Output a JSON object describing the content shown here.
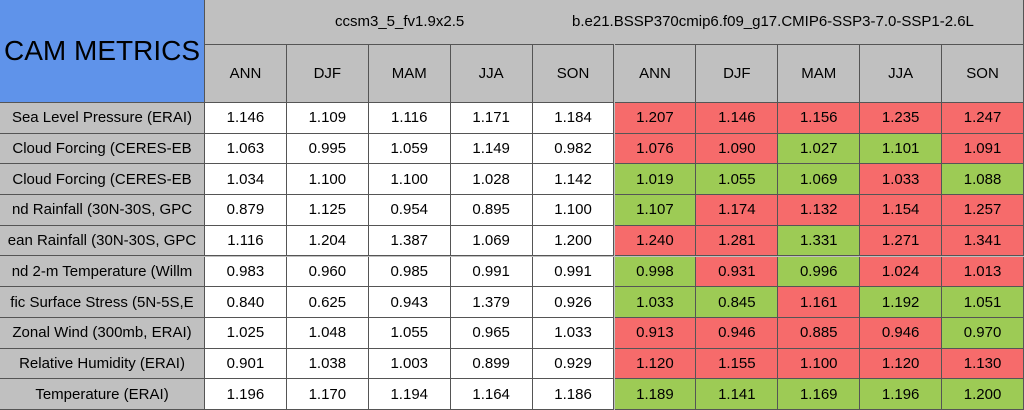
{
  "header": {
    "title": "CAM METRICS",
    "groups": [
      "ccsm3_5_fv1.9x2.5",
      "b.e21.BSSP370cmip6.f09_g17.CMIP6-SSP3-7.0-SSP1-2.6L"
    ],
    "seasons": [
      "ANN",
      "DJF",
      "MAM",
      "JJA",
      "SON",
      "ANN",
      "DJF",
      "MAM",
      "JJA",
      "SON"
    ]
  },
  "rows": [
    {
      "label": "Sea Level Pressure (ERAI)",
      "values": [
        "1.146",
        "1.109",
        "1.116",
        "1.171",
        "1.184",
        "1.207",
        "1.146",
        "1.156",
        "1.235",
        "1.247"
      ],
      "colors": [
        "#ffffff",
        "#ffffff",
        "#ffffff",
        "#ffffff",
        "#ffffff",
        "#f66b6b",
        "#f66b6b",
        "#f66b6b",
        "#f66b6b",
        "#f66b6b"
      ]
    },
    {
      "label": "Cloud Forcing (CERES-EB",
      "values": [
        "1.063",
        "0.995",
        "1.059",
        "1.149",
        "0.982",
        "1.076",
        "1.090",
        "1.027",
        "1.101",
        "1.091"
      ],
      "colors": [
        "#ffffff",
        "#ffffff",
        "#ffffff",
        "#ffffff",
        "#ffffff",
        "#f66b6b",
        "#f66b6b",
        "#9dcb55",
        "#9dcb55",
        "#f66b6b"
      ]
    },
    {
      "label": "Cloud Forcing (CERES-EB",
      "values": [
        "1.034",
        "1.100",
        "1.100",
        "1.028",
        "1.142",
        "1.019",
        "1.055",
        "1.069",
        "1.033",
        "1.088"
      ],
      "colors": [
        "#ffffff",
        "#ffffff",
        "#ffffff",
        "#ffffff",
        "#ffffff",
        "#9dcb55",
        "#9dcb55",
        "#9dcb55",
        "#f66b6b",
        "#9dcb55"
      ]
    },
    {
      "label": "nd Rainfall (30N-30S, GPC",
      "values": [
        "0.879",
        "1.125",
        "0.954",
        "0.895",
        "1.100",
        "1.107",
        "1.174",
        "1.132",
        "1.154",
        "1.257"
      ],
      "colors": [
        "#ffffff",
        "#ffffff",
        "#ffffff",
        "#ffffff",
        "#ffffff",
        "#9dcb55",
        "#f66b6b",
        "#f66b6b",
        "#f66b6b",
        "#f66b6b"
      ]
    },
    {
      "label": "ean Rainfall (30N-30S, GPC",
      "values": [
        "1.116",
        "1.204",
        "1.387",
        "1.069",
        "1.200",
        "1.240",
        "1.281",
        "1.331",
        "1.271",
        "1.341"
      ],
      "colors": [
        "#ffffff",
        "#ffffff",
        "#ffffff",
        "#ffffff",
        "#ffffff",
        "#f66b6b",
        "#f66b6b",
        "#9dcb55",
        "#f66b6b",
        "#f66b6b"
      ]
    },
    {
      "label": "nd 2-m Temperature (Willm",
      "values": [
        "0.983",
        "0.960",
        "0.985",
        "0.991",
        "0.991",
        "0.998",
        "0.931",
        "0.996",
        "1.024",
        "1.013"
      ],
      "colors": [
        "#ffffff",
        "#ffffff",
        "#ffffff",
        "#ffffff",
        "#ffffff",
        "#9dcb55",
        "#f66b6b",
        "#9dcb55",
        "#f66b6b",
        "#f66b6b"
      ]
    },
    {
      "label": "fic Surface Stress (5N-5S,E",
      "values": [
        "0.840",
        "0.625",
        "0.943",
        "1.379",
        "0.926",
        "1.033",
        "0.845",
        "1.161",
        "1.192",
        "1.051"
      ],
      "colors": [
        "#ffffff",
        "#ffffff",
        "#ffffff",
        "#ffffff",
        "#ffffff",
        "#9dcb55",
        "#9dcb55",
        "#f66b6b",
        "#9dcb55",
        "#9dcb55"
      ]
    },
    {
      "label": "Zonal Wind (300mb, ERAI)",
      "values": [
        "1.025",
        "1.048",
        "1.055",
        "0.965",
        "1.033",
        "0.913",
        "0.946",
        "0.885",
        "0.946",
        "0.970"
      ],
      "colors": [
        "#ffffff",
        "#ffffff",
        "#ffffff",
        "#ffffff",
        "#ffffff",
        "#f66b6b",
        "#f66b6b",
        "#f66b6b",
        "#f66b6b",
        "#9dcb55"
      ]
    },
    {
      "label": "Relative Humidity (ERAI)",
      "values": [
        "0.901",
        "1.038",
        "1.003",
        "0.899",
        "0.929",
        "1.120",
        "1.155",
        "1.100",
        "1.120",
        "1.130"
      ],
      "colors": [
        "#ffffff",
        "#ffffff",
        "#ffffff",
        "#ffffff",
        "#ffffff",
        "#f66b6b",
        "#f66b6b",
        "#f66b6b",
        "#f66b6b",
        "#f66b6b"
      ]
    },
    {
      "label": "Temperature (ERAI)",
      "values": [
        "1.196",
        "1.170",
        "1.194",
        "1.164",
        "1.186",
        "1.189",
        "1.141",
        "1.169",
        "1.196",
        "1.200"
      ],
      "colors": [
        "#ffffff",
        "#ffffff",
        "#ffffff",
        "#ffffff",
        "#ffffff",
        "#9dcb55",
        "#9dcb55",
        "#9dcb55",
        "#9dcb55",
        "#9dcb55"
      ]
    }
  ]
}
